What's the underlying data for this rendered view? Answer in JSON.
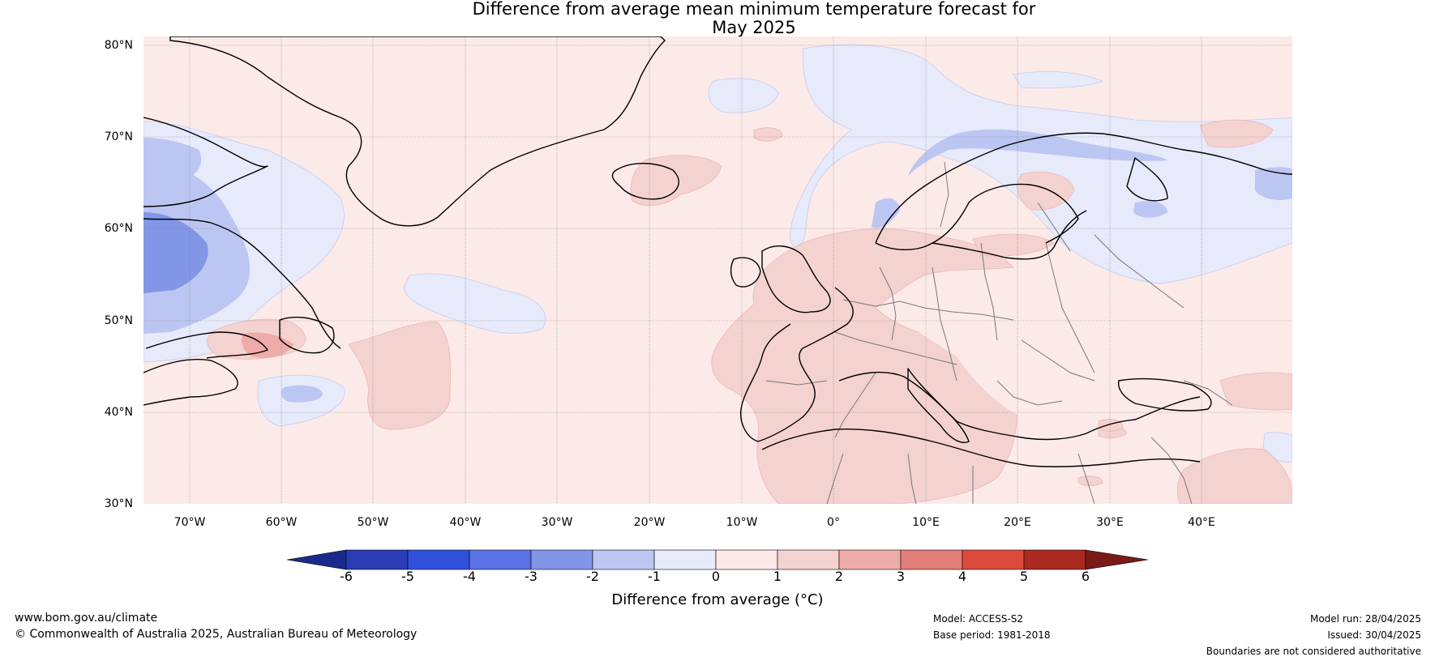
{
  "title": {
    "line1": "Difference from average mean minimum temperature forecast for",
    "line2": "May 2025"
  },
  "map": {
    "region": "North Atlantic and Europe",
    "lat_labels": [
      "80°N",
      "70°N",
      "60°N",
      "50°N",
      "40°N",
      "30°N"
    ],
    "lon_labels": [
      "70°W",
      "60°W",
      "50°W",
      "40°W",
      "30°W",
      "20°W",
      "10°W",
      "0°",
      "10°E",
      "20°E",
      "30°E",
      "40°E"
    ],
    "gridlines": true
  },
  "colorbar": {
    "label": "Difference from average (°C)",
    "ticks": [
      "-6",
      "-5",
      "-4",
      "-3",
      "-2",
      "-1",
      "0",
      "1",
      "2",
      "3",
      "4",
      "5",
      "6"
    ],
    "colors": [
      "#1a2a8c",
      "#2a3db4",
      "#3050dc",
      "#5a72e4",
      "#8296e8",
      "#bcc6f2",
      "#e6eafa",
      "#fce8e6",
      "#f4d2d0",
      "#eeaca8",
      "#e47e78",
      "#dc4a3e",
      "#aa2a22",
      "#7a1a16"
    ]
  },
  "footer": {
    "website": "www.bom.gov.au/climate",
    "copyright": "© Commonwealth of Australia 2025, Australian Bureau of Meteorology",
    "model": "Model: ACCESS-S2",
    "base_period": "Base period: 1981-2018",
    "model_run": "Model run: 28/04/2025",
    "issued": "Issued: 30/04/2025",
    "disclaimer": "Boundaries are not considered authoritative"
  }
}
